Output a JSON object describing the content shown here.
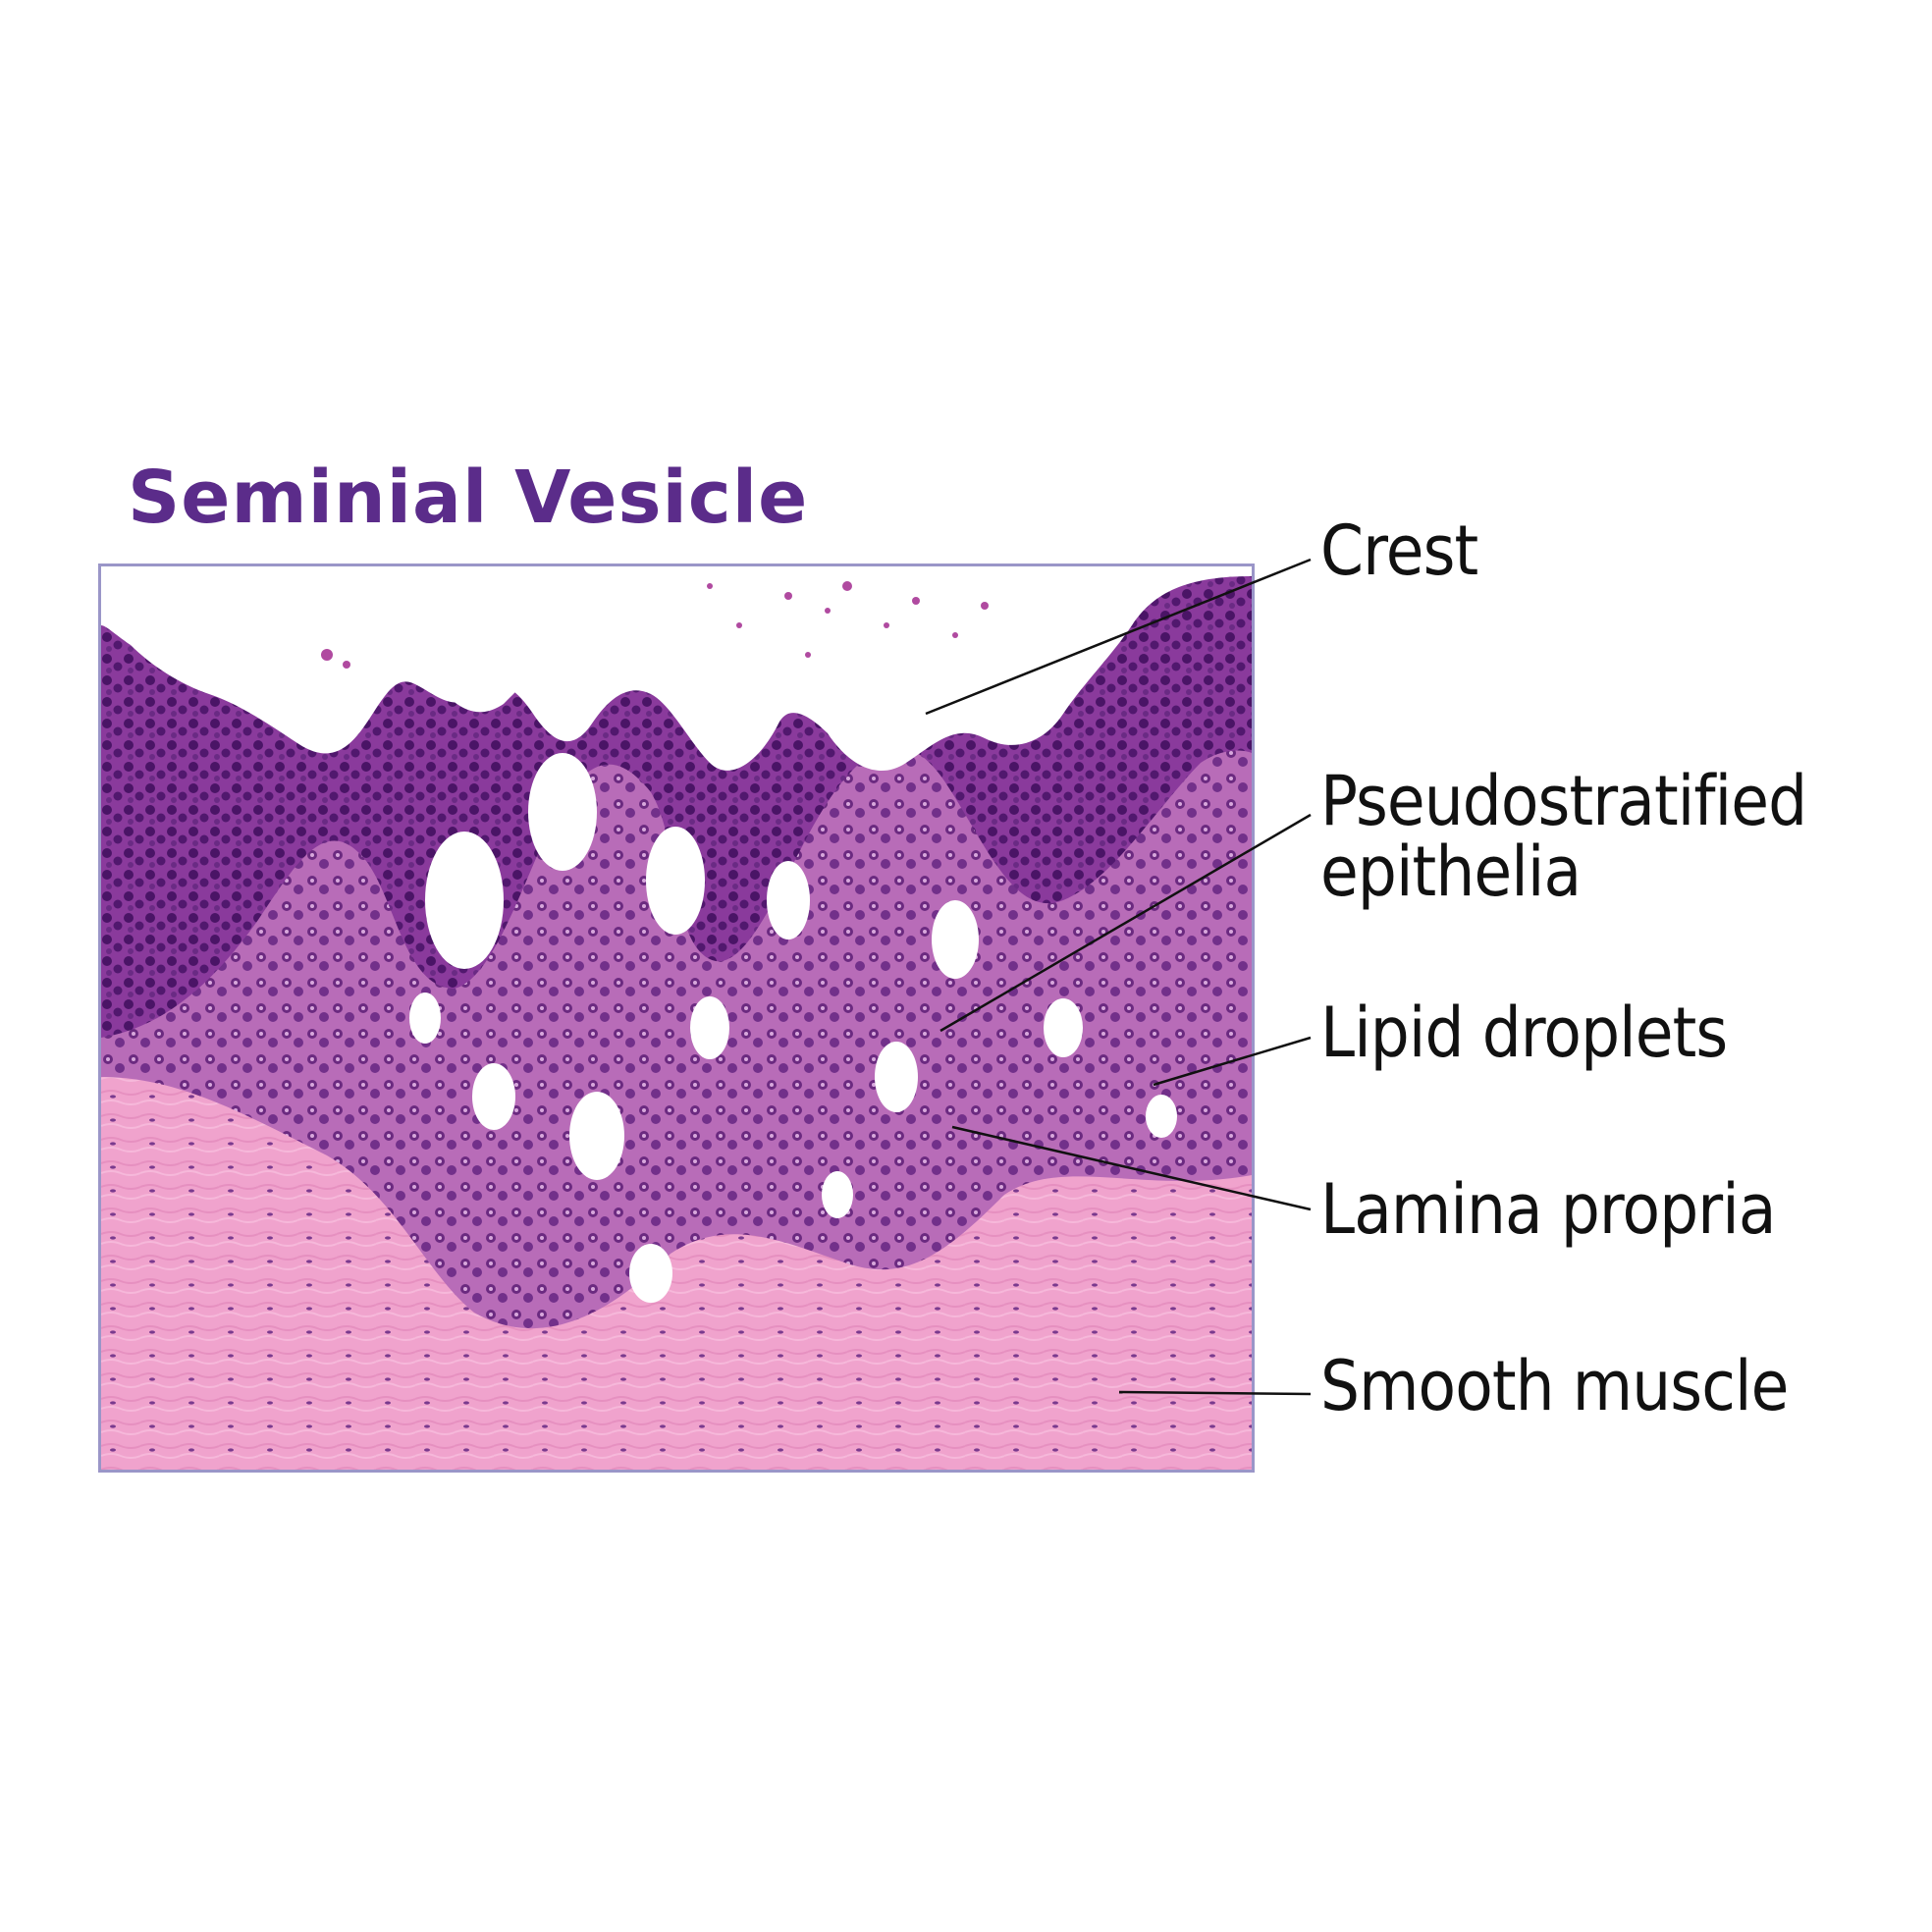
{
  "title": "Seminial Vesicle",
  "image": {
    "subject": "histology-micrograph",
    "colors": {
      "lumen": "#ffffff",
      "epithelium": "#7a2a8e",
      "nuclei": "#4a1466",
      "lamina_propria": "#c07ac0",
      "smooth_muscle": "#f2a4cf",
      "border": "#9a96c8"
    }
  },
  "labels": {
    "crest": "Crest",
    "pseudostratified_line1": "Pseudostratified",
    "pseudostratified_line2": "epithelia",
    "lipid_droplets": "Lipid droplets",
    "lamina_propria": "Lamina propria",
    "smooth_muscle": "Smooth muscle"
  },
  "colors": {
    "title": "#5b2c8a",
    "label_text": "#111111",
    "leader_line": "#111111"
  }
}
